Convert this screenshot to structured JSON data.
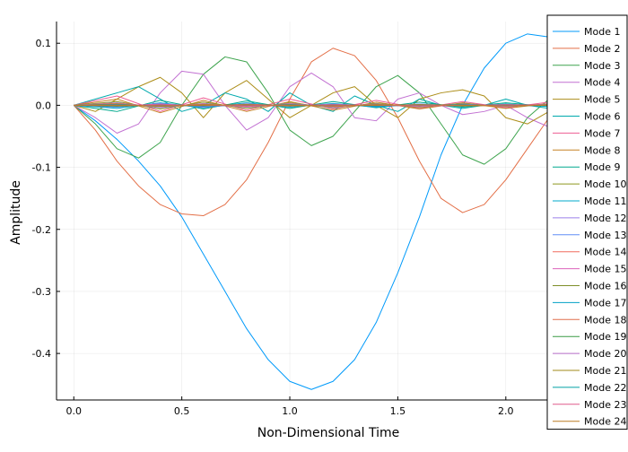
{
  "chart_data": {
    "type": "line",
    "title": "",
    "xlabel": "Non-Dimensional Time",
    "ylabel": "Amplitude",
    "xlim": [
      -0.08,
      2.25
    ],
    "ylim": [
      -0.475,
      0.135
    ],
    "xticks": [
      0.0,
      0.5,
      1.0,
      1.5,
      2.0
    ],
    "xtick_labels": [
      "0.0",
      "0.5",
      "1.0",
      "1.5",
      "2.0"
    ],
    "yticks": [
      0.1,
      0.0,
      -0.1,
      -0.2,
      -0.3,
      -0.4
    ],
    "ytick_labels": [
      "0.1",
      "0.0",
      "-0.1",
      "-0.2",
      "-0.3",
      "-0.4"
    ],
    "grid": true,
    "legend_position": "top-right",
    "series": [
      {
        "name": "Mode 1",
        "color": "#009AFA",
        "x": [
          0,
          0.1,
          0.2,
          0.3,
          0.4,
          0.5,
          0.6,
          0.7,
          0.8,
          0.9,
          1.0,
          1.1,
          1.2,
          1.3,
          1.4,
          1.5,
          1.6,
          1.7,
          1.8,
          1.9,
          2.0,
          2.1,
          2.2,
          2.25
        ],
        "y": [
          0,
          -0.025,
          -0.055,
          -0.09,
          -0.13,
          -0.18,
          -0.24,
          -0.3,
          -0.36,
          -0.41,
          -0.445,
          -0.458,
          -0.445,
          -0.41,
          -0.35,
          -0.27,
          -0.18,
          -0.08,
          0.0,
          0.06,
          0.1,
          0.115,
          0.11,
          0.1
        ]
      },
      {
        "name": "Mode 2",
        "color": "#E36F47",
        "x": [
          0,
          0.1,
          0.2,
          0.3,
          0.4,
          0.5,
          0.6,
          0.7,
          0.8,
          0.9,
          1.0,
          1.1,
          1.2,
          1.3,
          1.4,
          1.5,
          1.6,
          1.7,
          1.8,
          1.9,
          2.0,
          2.1,
          2.2,
          2.25
        ],
        "y": [
          0,
          -0.04,
          -0.09,
          -0.13,
          -0.16,
          -0.175,
          -0.178,
          -0.16,
          -0.12,
          -0.06,
          0.01,
          0.07,
          0.092,
          0.08,
          0.04,
          -0.02,
          -0.09,
          -0.15,
          -0.173,
          -0.16,
          -0.12,
          -0.07,
          -0.02,
          0.0
        ]
      },
      {
        "name": "Mode 3",
        "color": "#3EA44E",
        "x": [
          0,
          0.1,
          0.2,
          0.3,
          0.4,
          0.5,
          0.6,
          0.7,
          0.8,
          0.9,
          1.0,
          1.1,
          1.2,
          1.3,
          1.4,
          1.5,
          1.6,
          1.7,
          1.8,
          1.9,
          2.0,
          2.1,
          2.2,
          2.25
        ],
        "y": [
          0,
          -0.03,
          -0.07,
          -0.085,
          -0.06,
          0.0,
          0.05,
          0.078,
          0.07,
          0.02,
          -0.04,
          -0.065,
          -0.05,
          -0.01,
          0.03,
          0.048,
          0.02,
          -0.03,
          -0.08,
          -0.095,
          -0.07,
          -0.02,
          0.01,
          0.0
        ]
      },
      {
        "name": "Mode 4",
        "color": "#C271D2",
        "x": [
          0,
          0.1,
          0.2,
          0.3,
          0.4,
          0.5,
          0.6,
          0.7,
          0.8,
          0.9,
          1.0,
          1.1,
          1.2,
          1.3,
          1.4,
          1.5,
          1.6,
          1.7,
          1.8,
          1.9,
          2.0,
          2.1,
          2.2,
          2.25
        ],
        "y": [
          0,
          -0.02,
          -0.045,
          -0.03,
          0.02,
          0.055,
          0.05,
          0.0,
          -0.04,
          -0.02,
          0.03,
          0.052,
          0.03,
          -0.02,
          -0.025,
          0.01,
          0.02,
          0.0,
          -0.015,
          -0.01,
          0.0,
          -0.02,
          -0.035,
          -0.03
        ]
      },
      {
        "name": "Mode 5",
        "color": "#AC8D18",
        "x": [
          0,
          0.1,
          0.2,
          0.3,
          0.4,
          0.5,
          0.6,
          0.7,
          0.8,
          0.9,
          1.0,
          1.1,
          1.2,
          1.3,
          1.4,
          1.5,
          1.6,
          1.7,
          1.8,
          1.9,
          2.0,
          2.1,
          2.2,
          2.25
        ],
        "y": [
          0,
          -0.01,
          0.01,
          0.03,
          0.045,
          0.02,
          -0.02,
          0.02,
          0.04,
          0.01,
          -0.02,
          0.0,
          0.02,
          0.03,
          0.0,
          -0.02,
          0.01,
          0.02,
          0.025,
          0.015,
          -0.02,
          -0.03,
          -0.01,
          0.0
        ]
      },
      {
        "name": "Mode 6",
        "color": "#00A9AD",
        "x": [
          0,
          0.1,
          0.2,
          0.3,
          0.4,
          0.5,
          0.6,
          0.7,
          0.8,
          0.9,
          1.0,
          1.1,
          1.2,
          1.3,
          1.4,
          1.5,
          1.6,
          1.7,
          1.8,
          1.9,
          2.0,
          2.1,
          2.2,
          2.25
        ],
        "y": [
          0,
          0.01,
          0.02,
          0.03,
          0.01,
          -0.01,
          0.0,
          0.02,
          0.01,
          -0.01,
          0.02,
          0.0,
          -0.01,
          0.015,
          0.0,
          -0.01,
          0.01,
          0.0,
          -0.005,
          0.0,
          0.01,
          0.0,
          -0.005,
          0.0
        ]
      },
      {
        "name": "Mode 7",
        "color": "#ED5D92",
        "x": [
          0,
          0.2,
          0.4,
          0.6,
          0.8,
          1.0,
          1.2,
          1.4,
          1.6,
          1.8,
          2.0,
          2.2,
          2.25
        ],
        "y": [
          0,
          0.015,
          -0.01,
          0.012,
          -0.008,
          0.01,
          -0.006,
          0.008,
          -0.005,
          0.006,
          -0.004,
          0.005,
          0.0
        ]
      },
      {
        "name": "Mode 8",
        "color": "#C68225",
        "x": [
          0,
          0.2,
          0.4,
          0.6,
          0.8,
          1.0,
          1.2,
          1.4,
          1.6,
          1.8,
          2.0,
          2.2,
          2.25
        ],
        "y": [
          0,
          0.01,
          -0.012,
          0.008,
          -0.01,
          0.006,
          -0.008,
          0.005,
          -0.006,
          0.004,
          -0.005,
          0.003,
          0.0
        ]
      },
      {
        "name": "Mode 9",
        "color": "#00A98D",
        "x": [
          0,
          0.2,
          0.4,
          0.6,
          0.8,
          1.0,
          1.2,
          1.4,
          1.6,
          1.8,
          2.0,
          2.2,
          2.25
        ],
        "y": [
          0,
          -0.01,
          0.008,
          -0.006,
          0.007,
          -0.005,
          0.006,
          -0.004,
          0.005,
          -0.003,
          0.004,
          -0.002,
          0.0
        ]
      },
      {
        "name": "Mode 10",
        "color": "#8E971E",
        "x": [
          0,
          0.2,
          0.4,
          0.6,
          0.8,
          1.0,
          1.2,
          1.4,
          1.6,
          1.8,
          2.0,
          2.2,
          2.25
        ],
        "y": [
          0,
          0.006,
          -0.006,
          0.005,
          -0.005,
          0.004,
          -0.004,
          0.003,
          -0.003,
          0.003,
          -0.002,
          0.002,
          0.0
        ]
      },
      {
        "name": "Mode 11",
        "color": "#00A8CB",
        "x": [
          0,
          0.2,
          0.4,
          0.6,
          0.8,
          1.0,
          1.2,
          1.4,
          1.6,
          1.8,
          2.0,
          2.2,
          2.25
        ],
        "y": [
          0,
          -0.005,
          0.004,
          -0.004,
          0.004,
          -0.003,
          0.003,
          -0.003,
          0.002,
          -0.002,
          0.002,
          -0.002,
          0.0
        ]
      },
      {
        "name": "Mode 12",
        "color": "#9B7FE9",
        "x": [
          0,
          0.2,
          0.4,
          0.6,
          0.8,
          1.0,
          1.2,
          1.4,
          1.6,
          1.8,
          2.0,
          2.2,
          2.25
        ],
        "y": [
          0,
          0.004,
          -0.004,
          0.003,
          -0.003,
          0.003,
          -0.003,
          0.002,
          -0.002,
          0.002,
          -0.002,
          0.002,
          0.0
        ]
      },
      {
        "name": "Mode 13",
        "color": "#618DF6",
        "x": [
          0,
          0.2,
          0.4,
          0.6,
          0.8,
          1.0,
          1.2,
          1.4,
          1.6,
          1.8,
          2.0,
          2.2,
          2.25
        ],
        "y": [
          0,
          -0.003,
          0.003,
          -0.003,
          0.002,
          -0.002,
          0.002,
          -0.002,
          0.002,
          -0.001,
          0.001,
          -0.001,
          0.0
        ]
      },
      {
        "name": "Mode 14",
        "color": "#F16C5E",
        "x": [
          0,
          0.2,
          0.4,
          0.6,
          0.8,
          1.0,
          1.2,
          1.4,
          1.6,
          1.8,
          2.0,
          2.2,
          2.25
        ],
        "y": [
          0,
          0.003,
          -0.002,
          0.002,
          -0.002,
          0.002,
          -0.002,
          0.001,
          -0.001,
          0.001,
          -0.001,
          0.001,
          0.0
        ]
      },
      {
        "name": "Mode 15",
        "color": "#DC63BC",
        "x": [
          0,
          0.2,
          0.4,
          0.6,
          0.8,
          1.0,
          1.2,
          1.4,
          1.6,
          1.8,
          2.0,
          2.2,
          2.25
        ],
        "y": [
          0,
          -0.002,
          0.002,
          -0.002,
          0.002,
          -0.001,
          0.001,
          -0.001,
          0.001,
          -0.001,
          0.001,
          -0.001,
          0.0
        ]
      },
      {
        "name": "Mode 16",
        "color": "#7F8F2A",
        "x": [
          0,
          0.2,
          0.4,
          0.6,
          0.8,
          1.0,
          1.2,
          1.4,
          1.6,
          1.8,
          2.0,
          2.2,
          2.25
        ],
        "y": [
          0,
          0.002,
          -0.002,
          0.001,
          -0.001,
          0.001,
          -0.001,
          0.001,
          -0.001,
          0.001,
          -0.001,
          0.001,
          0.0
        ]
      },
      {
        "name": "Mode 17",
        "color": "#00A1C4",
        "x": [
          0,
          0.2,
          0.4,
          0.6,
          0.8,
          1.0,
          1.2,
          1.4,
          1.6,
          1.8,
          2.0,
          2.2,
          2.25
        ],
        "y": [
          0,
          -0.002,
          0.001,
          -0.001,
          0.001,
          -0.001,
          0.001,
          -0.001,
          0.001,
          -0.001,
          0.001,
          -0.001,
          0.0
        ]
      },
      {
        "name": "Mode 18",
        "color": "#E06E4C",
        "x": [
          0,
          0.2,
          0.4,
          0.6,
          0.8,
          1.0,
          1.2,
          1.4,
          1.6,
          1.8,
          2.0,
          2.2,
          2.25
        ],
        "y": [
          0,
          0.001,
          -0.001,
          0.001,
          -0.001,
          0.001,
          -0.001,
          0.001,
          -0.001,
          0.001,
          -0.001,
          0.001,
          0.0
        ]
      },
      {
        "name": "Mode 19",
        "color": "#3A9C46",
        "x": [
          0,
          0.2,
          0.4,
          0.6,
          0.8,
          1.0,
          1.2,
          1.4,
          1.6,
          1.8,
          2.0,
          2.2,
          2.25
        ],
        "y": [
          0,
          -0.001,
          0.001,
          -0.001,
          0.001,
          -0.001,
          0.001,
          -0.001,
          0.001,
          -0.001,
          0.001,
          -0.001,
          0.0
        ]
      },
      {
        "name": "Mode 20",
        "color": "#B56AC8",
        "x": [
          0,
          0.2,
          0.4,
          0.6,
          0.8,
          1.0,
          1.2,
          1.4,
          1.6,
          1.8,
          2.0,
          2.2,
          2.25
        ],
        "y": [
          0,
          0.001,
          -0.001,
          0.001,
          -0.001,
          0.0,
          0.0,
          0.001,
          -0.001,
          0.0,
          0.0,
          0.001,
          0.0
        ]
      },
      {
        "name": "Mode 21",
        "color": "#A28818",
        "x": [
          0,
          0.2,
          0.4,
          0.6,
          0.8,
          1.0,
          1.2,
          1.4,
          1.6,
          1.8,
          2.0,
          2.2,
          2.25
        ],
        "y": [
          0,
          -0.001,
          0.0,
          0.001,
          0.0,
          -0.001,
          0.0,
          0.001,
          0.0,
          -0.001,
          0.0,
          0.001,
          0.0
        ]
      },
      {
        "name": "Mode 22",
        "color": "#00A0A4",
        "x": [
          0,
          0.2,
          0.4,
          0.6,
          0.8,
          1.0,
          1.2,
          1.4,
          1.6,
          1.8,
          2.0,
          2.2,
          2.25
        ],
        "y": [
          0,
          0.001,
          0.0,
          -0.001,
          0.0,
          0.001,
          0.0,
          -0.001,
          0.0,
          0.001,
          0.0,
          -0.001,
          0.0
        ]
      },
      {
        "name": "Mode 23",
        "color": "#E05B8B",
        "x": [
          0,
          0.2,
          0.4,
          0.6,
          0.8,
          1.0,
          1.2,
          1.4,
          1.6,
          1.8,
          2.0,
          2.2,
          2.25
        ],
        "y": [
          0,
          0.0,
          0.001,
          0.0,
          -0.001,
          0.0,
          0.001,
          0.0,
          -0.001,
          0.0,
          0.001,
          0.0,
          0.0
        ]
      },
      {
        "name": "Mode 24",
        "color": "#BC7B22",
        "x": [
          0,
          0.2,
          0.4,
          0.6,
          0.8,
          1.0,
          1.2,
          1.4,
          1.6,
          1.8,
          2.0,
          2.2,
          2.25
        ],
        "y": [
          0,
          0.0,
          -0.001,
          0.0,
          0.001,
          0.0,
          -0.001,
          0.0,
          0.001,
          0.0,
          -0.001,
          0.0,
          0.0
        ]
      }
    ]
  }
}
